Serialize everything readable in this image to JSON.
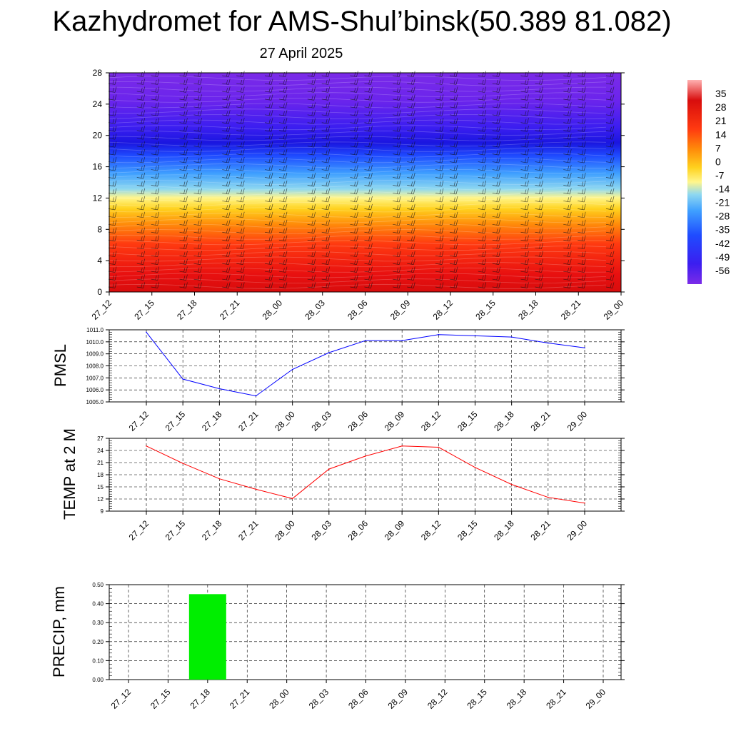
{
  "header": {
    "title": "Kazhydromet for AMS-Shul’binsk(50.389 81.082)",
    "subtitle": "27 April 2025"
  },
  "chart_data": [
    {
      "type": "heatmap",
      "name": "vertical cross-section",
      "y_ticks": [
        "0",
        "4",
        "8",
        "12",
        "16",
        "20",
        "24",
        "28"
      ],
      "ylim": [
        0,
        28
      ],
      "x_ticks": [
        "27_12",
        "27_15",
        "27_18",
        "27_21",
        "28_00",
        "28_03",
        "28_06",
        "28_09",
        "28_12",
        "28_15",
        "28_18",
        "28_21",
        "29_00"
      ],
      "colorbar_labels": [
        "35",
        "28",
        "21",
        "14",
        "7",
        "0",
        "-7",
        "-14",
        "-21",
        "-28",
        "-35",
        "-42",
        "-49",
        "-56"
      ],
      "colorbar_range": [
        -63,
        42
      ],
      "colors": [
        "#7b2be8",
        "#3b1ef0",
        "#1f4cff",
        "#3fa0ff",
        "#8fd8f0",
        "#fff68c",
        "#ffd21e",
        "#ff8c0a",
        "#ff3a10",
        "#d80d0d",
        "#ff9c9c"
      ],
      "grid": false,
      "wind_barbs": true
    },
    {
      "type": "line",
      "ylabel": "PMSL",
      "ylim": [
        1005.0,
        1011.0
      ],
      "y_ticks": [
        "1005.0",
        "1006.0",
        "1007.0",
        "1008.0",
        "1009.0",
        "1010.0",
        "1011.0"
      ],
      "categories": [
        "27_12",
        "27_15",
        "27_18",
        "27_21",
        "28_00",
        "28_03",
        "28_06",
        "28_09",
        "28_12",
        "28_15",
        "28_18",
        "28_21",
        "29_00"
      ],
      "values": [
        1010.8,
        1006.9,
        1006.1,
        1005.5,
        1007.7,
        1009.1,
        1010.1,
        1010.1,
        1010.6,
        1010.5,
        1010.4,
        1009.9,
        1009.5
      ],
      "color": "#0000ff",
      "grid": true
    },
    {
      "type": "line",
      "ylabel": "TEMP at 2 M",
      "ylim": [
        9,
        27
      ],
      "y_ticks": [
        "9",
        "12",
        "15",
        "18",
        "21",
        "24",
        "27"
      ],
      "categories": [
        "27_12",
        "27_15",
        "27_18",
        "27_21",
        "28_00",
        "28_03",
        "28_06",
        "28_09",
        "28_12",
        "28_15",
        "28_18",
        "28_21",
        "29_00"
      ],
      "values": [
        25.1,
        20.8,
        17.0,
        14.4,
        12.1,
        19.4,
        22.6,
        25.1,
        24.8,
        19.8,
        15.6,
        12.4,
        11.0
      ],
      "color": "#ff0000",
      "grid": true
    },
    {
      "type": "bar",
      "ylabel": "PRECIP, mm",
      "ylim": [
        0,
        0.5
      ],
      "y_ticks": [
        "0.00",
        "0.10",
        "0.20",
        "0.30",
        "0.40",
        "0.50"
      ],
      "categories": [
        "27_12",
        "27_15",
        "27_18",
        "27_21",
        "28_00",
        "28_03",
        "28_06",
        "28_09",
        "28_12",
        "28_15",
        "28_18",
        "28_21",
        "29_00"
      ],
      "values": [
        0,
        0,
        0.45,
        0,
        0,
        0,
        0,
        0,
        0,
        0,
        0,
        0,
        0
      ],
      "color": "#00ee00",
      "grid": true
    }
  ]
}
